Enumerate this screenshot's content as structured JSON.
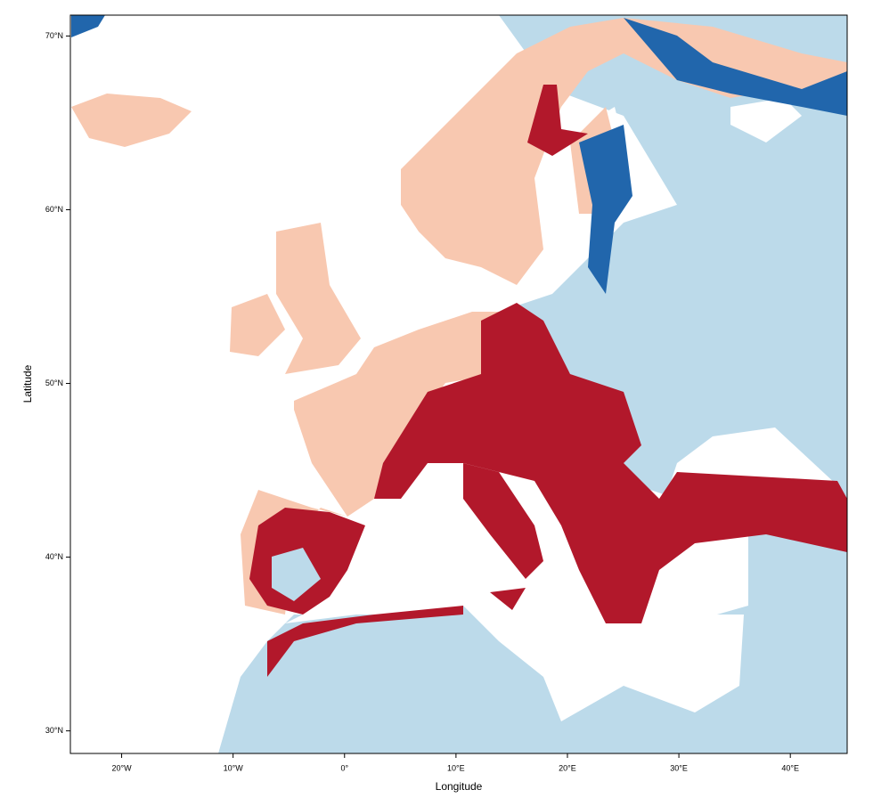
{
  "chart_data": {
    "type": "map",
    "xlabel": "Longitude",
    "ylabel": "Latitude",
    "xlim": [
      -24.6,
      45.1
    ],
    "ylim": [
      28.7,
      71.2
    ],
    "xticks": [
      {
        "value": -20,
        "label": "20°W"
      },
      {
        "value": -10,
        "label": "10°W"
      },
      {
        "value": 0,
        "label": "0°"
      },
      {
        "value": 10,
        "label": "10°E"
      },
      {
        "value": 20,
        "label": "20°E"
      },
      {
        "value": 30,
        "label": "30°E"
      },
      {
        "value": 40,
        "label": "40°E"
      }
    ],
    "yticks": [
      {
        "value": 30,
        "label": "30°N"
      },
      {
        "value": 40,
        "label": "40°N"
      },
      {
        "value": 50,
        "label": "50°N"
      },
      {
        "value": 60,
        "label": "60°N"
      },
      {
        "value": 70,
        "label": "70°N"
      }
    ]
  }
}
